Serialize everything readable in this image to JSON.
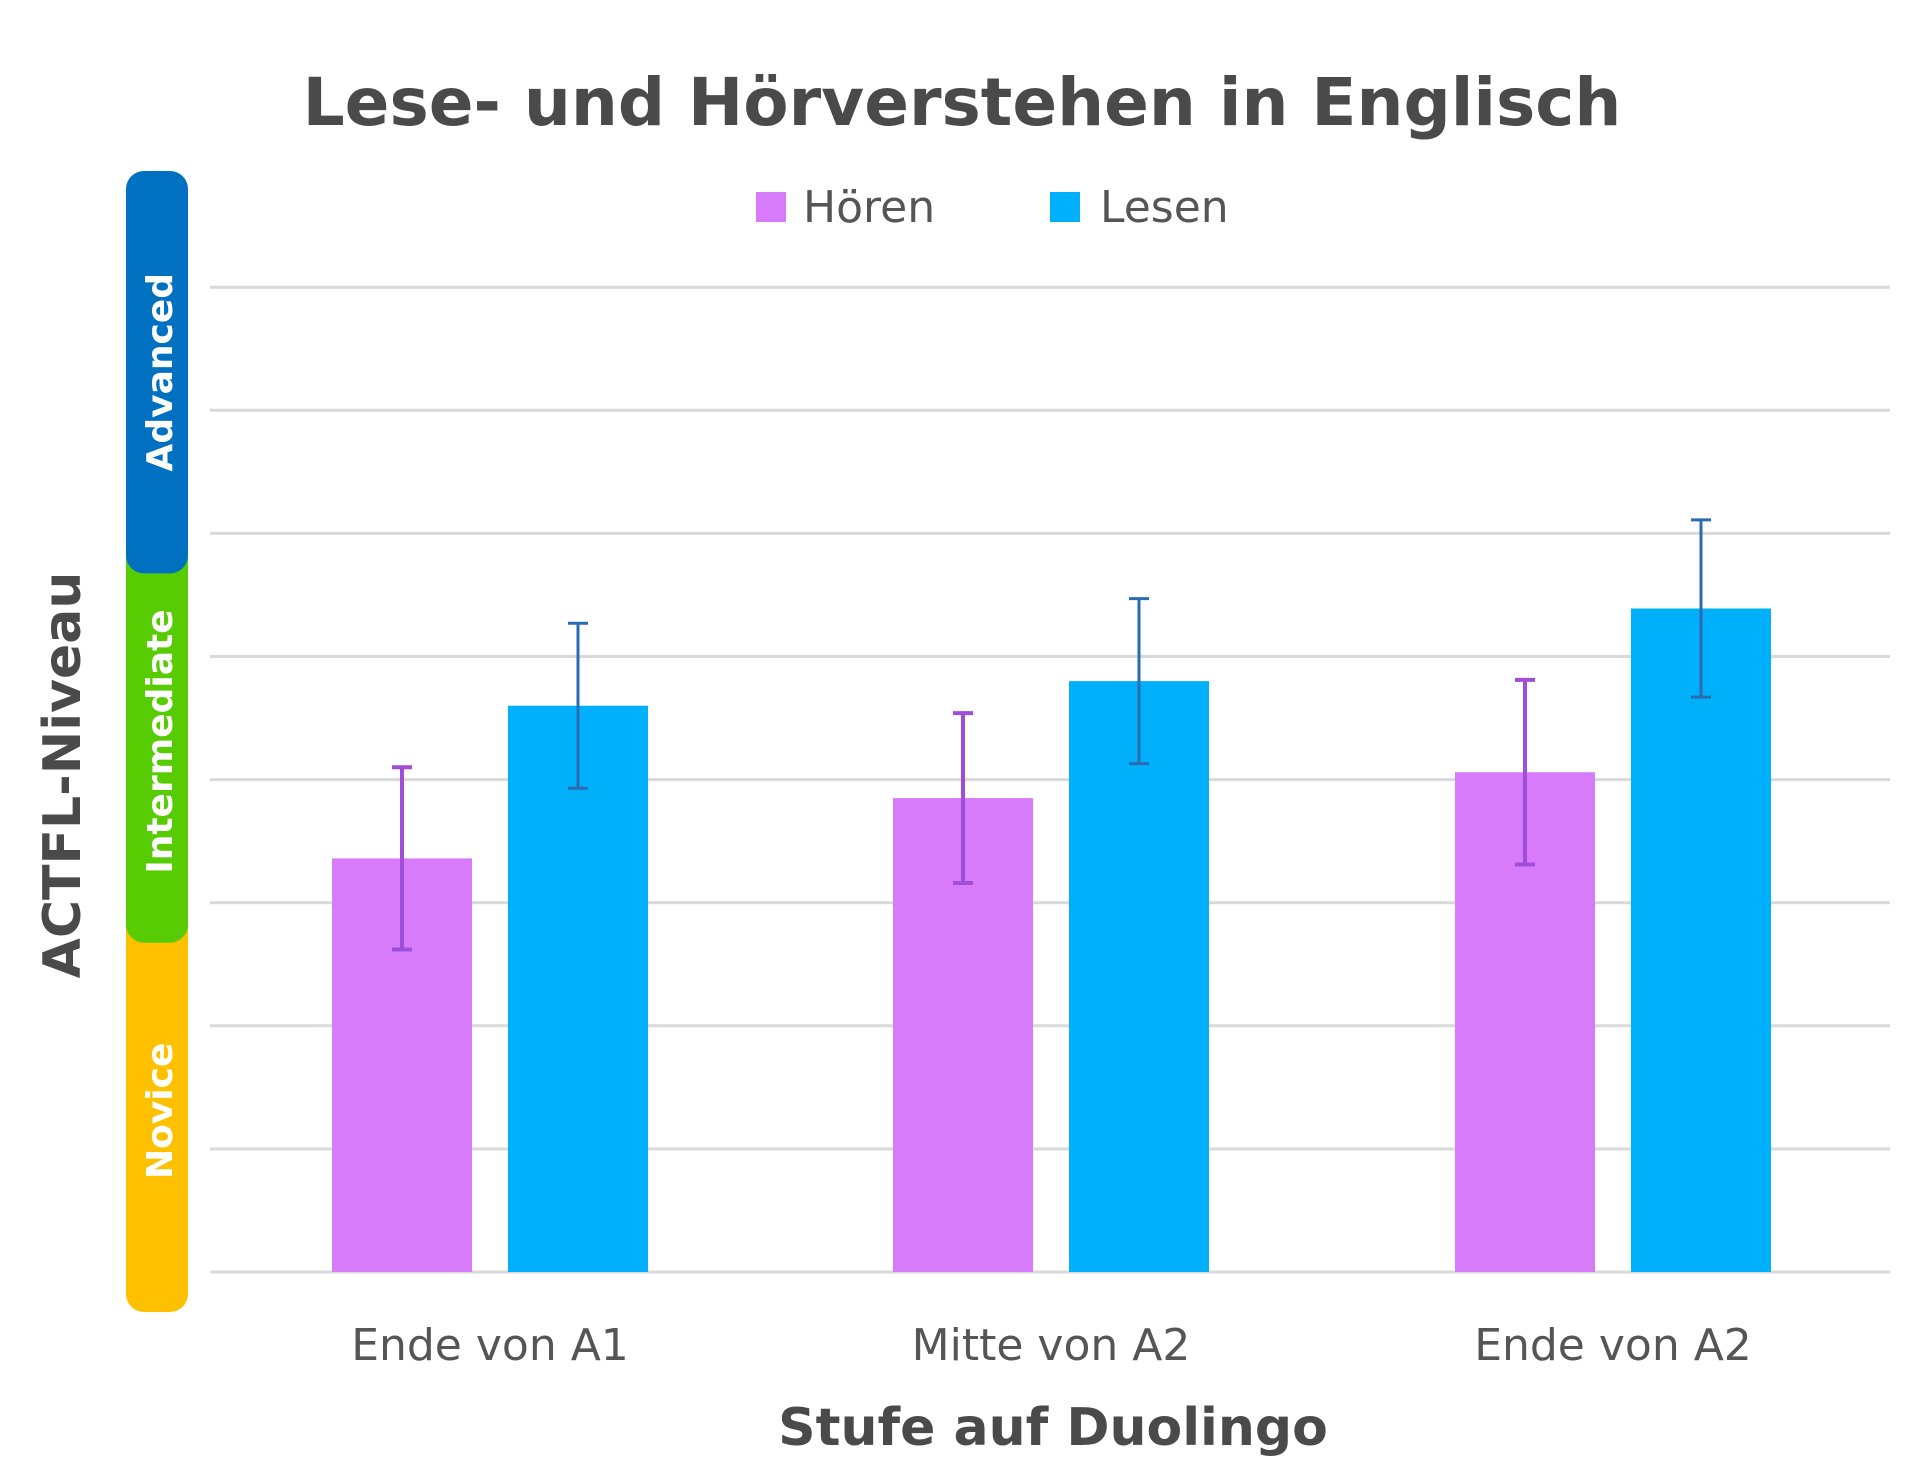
{
  "chart_data": {
    "type": "bar",
    "title": "Lese- und Hörverstehen in Englisch",
    "xlabel": "Stufe auf Duolingo",
    "ylabel": "ACTFL-Niveau",
    "categories": [
      "Ende von A1",
      "Mitte von A2",
      "Ende von A2"
    ],
    "ylim": [
      0,
      8
    ],
    "y_levels": [
      {
        "label": "Novice",
        "range": [
          0,
          2.7
        ],
        "color": "#ffc000"
      },
      {
        "label": "Intermediate",
        "range": [
          3.0,
          5.7
        ],
        "color": "#58cc02"
      },
      {
        "label": "Advanced",
        "range": [
          6.0,
          8.7
        ],
        "color": "#0070c0"
      }
    ],
    "series": [
      {
        "name": "Hören",
        "color": "#d87bfb",
        "error_color": "#a04ed8",
        "values": [
          3.36,
          3.85,
          4.06
        ],
        "error": [
          0.74,
          0.69,
          0.75
        ]
      },
      {
        "name": "Lesen",
        "color": "#00b0fb",
        "error_color": "#2b6cb0",
        "values": [
          4.6,
          4.8,
          5.39
        ],
        "error": [
          0.67,
          0.67,
          0.72
        ]
      }
    ],
    "grid": true,
    "legend_position": "top-center"
  }
}
